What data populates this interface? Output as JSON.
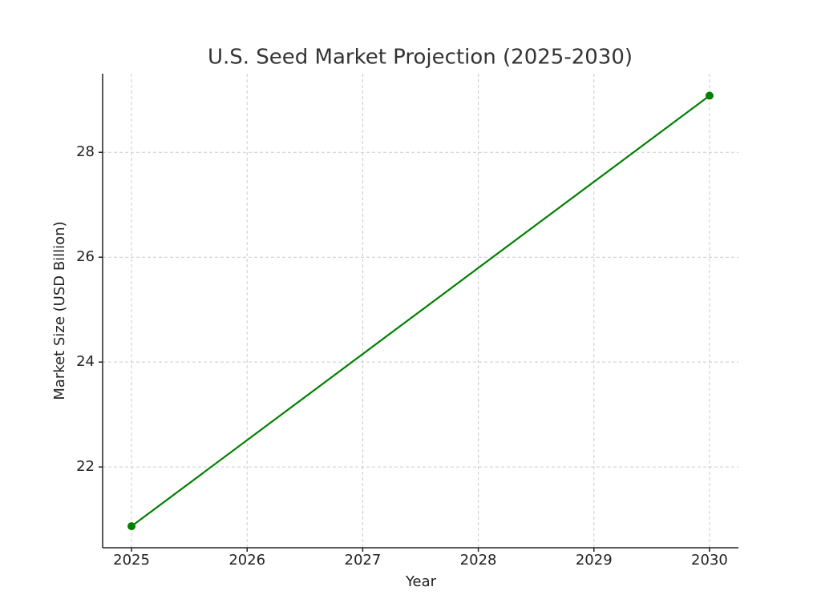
{
  "chart_data": {
    "type": "line",
    "title": "U.S. Seed Market Projection (2025-2030)",
    "x_label": "Year",
    "y_label": "Market Size (USD Billion)",
    "x": [
      2025,
      2030
    ],
    "values": [
      20.87,
      29.08
    ],
    "color": "#008000",
    "xlim": [
      2024.75,
      2030.25
    ],
    "xticks": [
      2025,
      2026,
      2027,
      2028,
      2029,
      2030
    ],
    "ylim": [
      20.46,
      29.5
    ],
    "yticks": [
      22,
      24,
      26,
      28
    ],
    "grid": true
  }
}
